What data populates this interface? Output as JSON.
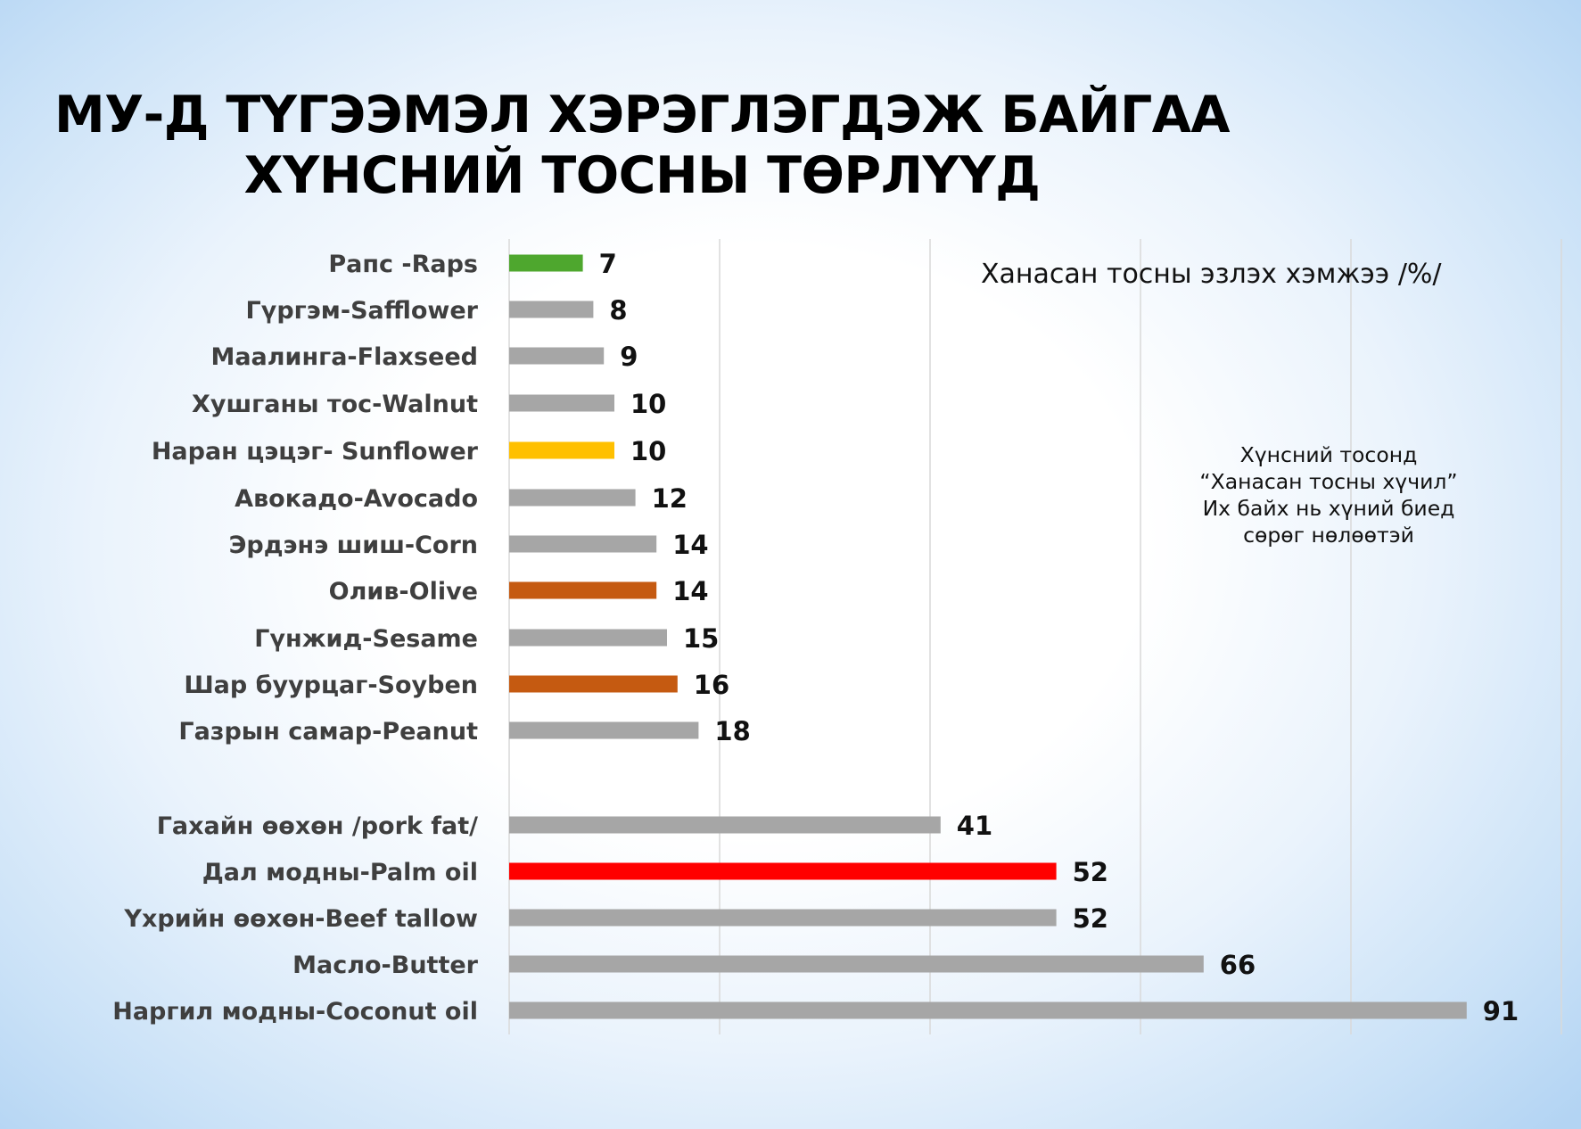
{
  "title": {
    "line1": "МУ-Д ТҮГЭЭМЭЛ ХЭРЭГЛЭГДЭЖ БАЙГАА",
    "line2": "ХҮНСНИЙ ТОСНЫ ТӨРЛҮҮД"
  },
  "axis_note": "Ханасан тосны эзлэх хэмжээ /%/",
  "side_note": {
    "line1": "Хүнсний тосонд",
    "line2": "“Ханасан тосны хүчил”",
    "line3": "Их байх нь хүний биед",
    "line4": "сөрөг нөлөөтэй"
  },
  "chart_data": {
    "type": "bar",
    "orientation": "horizontal",
    "xlim": [
      0,
      100
    ],
    "grid": true,
    "categories": [
      "Рапс -Raps",
      "Гүргэм-Safflower",
      "Маалинга-Flaxseed",
      "Хушганы тос-Walnut",
      "Наран цэцэг- Sunflower",
      "Авокадо-Avocado",
      "Эрдэнэ шиш-Corn",
      "Олив-Olive",
      "Гүнжид-Sesame",
      "Шар буурцаг-Soyben",
      "Газрын самар-Peanut",
      "Гахайн өөхөн /pork fat/",
      "Дал модны-Palm oil",
      "Үхрийн өөхөн-Beef tallow",
      "Масло-Butter",
      "Наргил модны-Coconut oil"
    ],
    "values": [
      7,
      8,
      9,
      10,
      10,
      12,
      14,
      14,
      15,
      16,
      18,
      41,
      52,
      52,
      66,
      91
    ],
    "colors": [
      "#4ea72e",
      "#a6a6a6",
      "#a6a6a6",
      "#a6a6a6",
      "#ffc000",
      "#a6a6a6",
      "#a6a6a6",
      "#c55a11",
      "#a6a6a6",
      "#c55a11",
      "#a6a6a6",
      "#a6a6a6",
      "#ff0000",
      "#a6a6a6",
      "#a6a6a6",
      "#a6a6a6"
    ]
  }
}
